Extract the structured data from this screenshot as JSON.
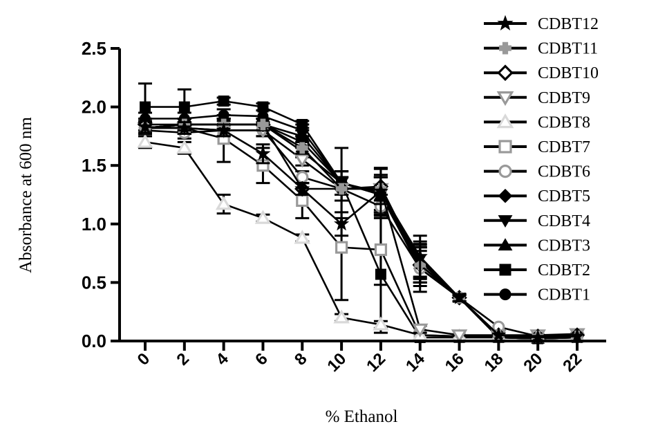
{
  "chart_data": {
    "type": "line",
    "title": "",
    "xlabel": "% Ethanol",
    "ylabel": "Absorbance at 600 nm",
    "x": [
      0,
      2,
      4,
      6,
      8,
      10,
      12,
      14,
      16,
      18,
      20,
      22
    ],
    "xticks": [
      "0",
      "2",
      "4",
      "6",
      "8",
      "10",
      "12",
      "14",
      "16",
      "18",
      "20",
      "22"
    ],
    "yticks": [
      "0.0",
      "0.5",
      "1.0",
      "1.5",
      "2.0",
      "2.5"
    ],
    "ylim": [
      0,
      2.5
    ],
    "xlim": [
      -1,
      23
    ],
    "grid": false,
    "legend_position": "top-right",
    "series": [
      {
        "name": "CDBT12",
        "marker": "star",
        "color": "#000000",
        "values": [
          1.83,
          1.82,
          1.8,
          1.6,
          1.3,
          1.0,
          1.28,
          0.72,
          0.37,
          0.05,
          0.03,
          0.04
        ],
        "errors": [
          0.05,
          0.05,
          0.05,
          0.08,
          0.05,
          0.1,
          0.2,
          0.18,
          0.03,
          0.01,
          0.01,
          0.01
        ]
      },
      {
        "name": "CDBT11",
        "marker": "cross",
        "color": "#999999",
        "values": [
          1.82,
          1.85,
          1.85,
          1.85,
          1.65,
          1.3,
          1.3,
          0.65,
          0.37,
          0.05,
          0.04,
          0.04
        ],
        "errors": [
          0.05,
          0.05,
          0.05,
          0.05,
          0.05,
          0.1,
          0.1,
          0.15,
          0.03,
          0.01,
          0.01,
          0.01
        ]
      },
      {
        "name": "CDBT10",
        "marker": "diamond-open",
        "color": "#000000",
        "values": [
          1.85,
          1.85,
          1.85,
          1.85,
          1.3,
          1.3,
          1.32,
          0.65,
          0.37,
          0.05,
          0.04,
          0.05
        ],
        "errors": [
          0.05,
          0.05,
          0.05,
          0.05,
          0.05,
          0.1,
          0.15,
          0.15,
          0.03,
          0.01,
          0.01,
          0.01
        ]
      },
      {
        "name": "CDBT9",
        "marker": "triangle-down-open",
        "color": "#999999",
        "values": [
          1.82,
          1.82,
          1.8,
          1.8,
          1.55,
          1.3,
          1.3,
          0.1,
          0.05,
          0.05,
          0.05,
          0.06
        ],
        "errors": [
          0.05,
          0.05,
          0.05,
          0.05,
          0.05,
          0.1,
          0.1,
          0.03,
          0.01,
          0.01,
          0.01,
          0.01
        ]
      },
      {
        "name": "CDBT8",
        "marker": "triangle-up-open",
        "color": "#d9d9d9",
        "values": [
          1.7,
          1.65,
          1.17,
          1.05,
          0.88,
          0.2,
          0.14,
          0.05,
          0.04,
          0.04,
          0.04,
          0.04
        ],
        "errors": [
          0.05,
          0.05,
          0.08,
          0.03,
          0.03,
          0.03,
          0.03,
          0.01,
          0.01,
          0.01,
          0.01,
          0.01
        ]
      },
      {
        "name": "CDBT7",
        "marker": "square-open",
        "color": "#999999",
        "values": [
          1.82,
          1.82,
          1.73,
          1.5,
          1.2,
          0.8,
          0.78,
          0.05,
          0.04,
          0.04,
          0.04,
          0.04
        ],
        "errors": [
          0.05,
          0.05,
          0.2,
          0.15,
          0.15,
          0.45,
          0.3,
          0.01,
          0.01,
          0.01,
          0.01,
          0.01
        ]
      },
      {
        "name": "CDBT6",
        "marker": "circle-open",
        "color": "#999999",
        "values": [
          1.8,
          1.78,
          1.8,
          1.8,
          1.4,
          1.3,
          1.15,
          0.62,
          0.37,
          0.12,
          0.04,
          0.04
        ],
        "errors": [
          0.05,
          0.05,
          0.05,
          0.05,
          0.05,
          0.1,
          0.1,
          0.2,
          0.03,
          0.01,
          0.01,
          0.01
        ]
      },
      {
        "name": "CDBT5",
        "marker": "diamond",
        "color": "#000000",
        "values": [
          1.82,
          1.85,
          1.85,
          1.85,
          1.62,
          1.35,
          1.25,
          0.62,
          0.37,
          0.05,
          0.04,
          0.04
        ],
        "errors": [
          0.05,
          0.05,
          0.05,
          0.05,
          0.05,
          0.1,
          0.15,
          0.15,
          0.03,
          0.01,
          0.01,
          0.01
        ]
      },
      {
        "name": "CDBT4",
        "marker": "triangle-down",
        "color": "#000000",
        "values": [
          1.82,
          1.85,
          1.85,
          1.85,
          1.7,
          1.35,
          1.25,
          0.7,
          0.37,
          0.03,
          0.02,
          0.03
        ],
        "errors": [
          0.05,
          0.05,
          0.05,
          0.05,
          0.05,
          0.1,
          0.15,
          0.15,
          0.03,
          0.01,
          0.01,
          0.01
        ]
      },
      {
        "name": "CDBT3",
        "marker": "triangle-up",
        "color": "#000000",
        "values": [
          1.82,
          1.85,
          1.85,
          1.85,
          1.75,
          1.35,
          1.25,
          0.68,
          0.37,
          0.03,
          0.02,
          0.03
        ],
        "errors": [
          0.05,
          0.05,
          0.05,
          0.05,
          0.05,
          0.1,
          0.15,
          0.15,
          0.03,
          0.01,
          0.01,
          0.01
        ]
      },
      {
        "name": "CDBT2",
        "marker": "square",
        "color": "#000000",
        "values": [
          2.0,
          2.0,
          2.05,
          2.0,
          1.85,
          1.35,
          0.57,
          0.03,
          0.03,
          0.03,
          0.02,
          0.03
        ],
        "errors": [
          0.2,
          0.15,
          0.03,
          0.03,
          0.03,
          0.3,
          0.5,
          0.01,
          0.01,
          0.01,
          0.01,
          0.01
        ]
      },
      {
        "name": "CDBT1",
        "marker": "circle",
        "color": "#000000",
        "values": [
          1.9,
          1.9,
          1.93,
          1.92,
          1.8,
          1.35,
          1.27,
          0.65,
          0.37,
          0.03,
          0.02,
          0.03
        ],
        "errors": [
          0.05,
          0.05,
          0.05,
          0.05,
          0.05,
          0.1,
          0.15,
          0.15,
          0.03,
          0.01,
          0.01,
          0.01
        ]
      }
    ]
  }
}
